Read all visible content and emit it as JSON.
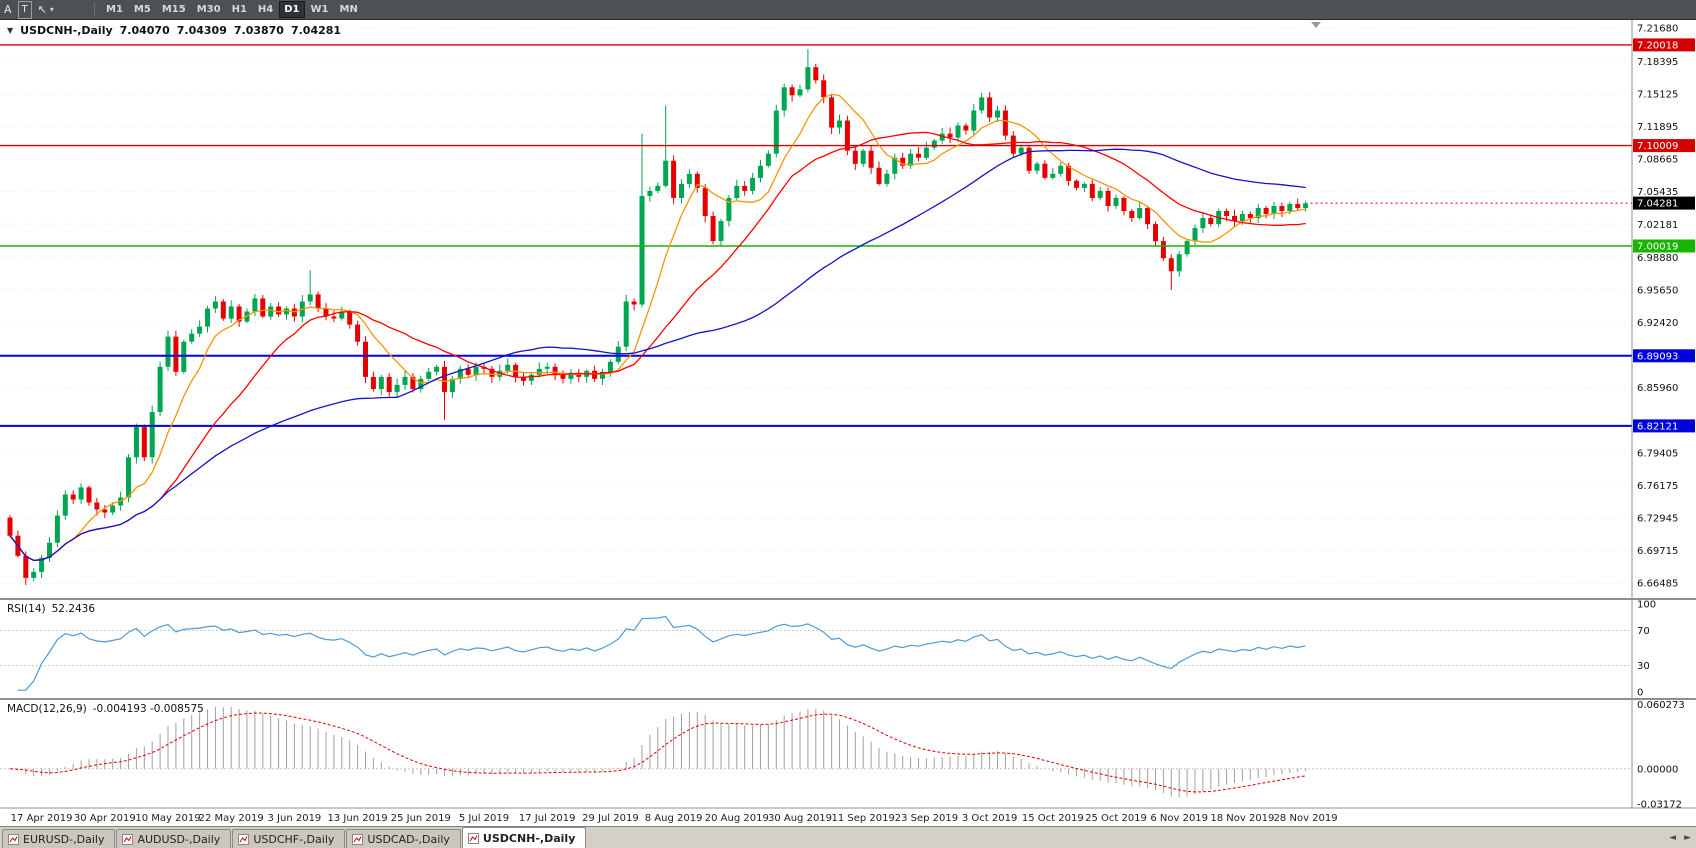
{
  "toolbar": {
    "tools": [
      {
        "name": "font-tool",
        "glyph": "A"
      },
      {
        "name": "text-tool",
        "glyph": "T",
        "boxed": true
      },
      {
        "name": "cursor-tool",
        "glyph": "↖"
      },
      {
        "name": "tools-dropdown-caret",
        "glyph": "▾",
        "caret": true
      }
    ],
    "timeframes": [
      {
        "label": "M1"
      },
      {
        "label": "M5"
      },
      {
        "label": "M15"
      },
      {
        "label": "M30"
      },
      {
        "label": "H1"
      },
      {
        "label": "H4"
      },
      {
        "label": "D1",
        "active": true
      },
      {
        "label": "W1"
      },
      {
        "label": "MN"
      }
    ]
  },
  "chart": {
    "header": {
      "collapse_glyph": "▼",
      "title": "USDCNH-,Daily",
      "open": "7.04070",
      "high": "7.04309",
      "low": "7.03870",
      "close": "7.04281"
    },
    "rsi_label": {
      "name": "RSI(14)",
      "value": "52.2436"
    },
    "macd_label": {
      "name": "MACD(12,26,9)",
      "value": "-0.004193 -0.008575"
    }
  },
  "chart_data": {
    "type": "candlestick",
    "symbol": "USDCNH-",
    "timeframe": "Daily",
    "current_bar": {
      "open": 7.0407,
      "high": 7.04309,
      "low": 7.0387,
      "close": 7.04281
    },
    "x_labels": [
      "17 Apr 2019",
      "30 Apr 2019",
      "10 May 2019",
      "22 May 2019",
      "3 Jun 2019",
      "13 Jun 2019",
      "25 Jun 2019",
      "5 Jul 2019",
      "17 Jul 2019",
      "29 Jul 2019",
      "8 Aug 2019",
      "20 Aug 2019",
      "30 Aug 2019",
      "11 Sep 2019",
      "23 Sep 2019",
      "3 Oct 2019",
      "15 Oct 2019",
      "25 Oct 2019",
      "6 Nov 2019",
      "18 Nov 2019",
      "28 Nov 2019"
    ],
    "label_start_index": 4,
    "label_step": 8,
    "first_open": 6.73,
    "closes": [
      6.712,
      6.692,
      6.67,
      6.676,
      6.69,
      6.705,
      6.732,
      6.753,
      6.748,
      6.76,
      6.745,
      6.738,
      6.735,
      6.742,
      6.75,
      6.79,
      6.82,
      6.79,
      6.835,
      6.88,
      6.91,
      6.875,
      6.905,
      6.913,
      6.92,
      6.938,
      6.945,
      6.928,
      6.94,
      6.925,
      6.935,
      6.948,
      6.93,
      6.94,
      6.932,
      6.938,
      6.93,
      6.945,
      6.952,
      6.938,
      6.93,
      6.928,
      6.935,
      6.922,
      6.905,
      6.87,
      6.858,
      6.87,
      6.855,
      6.862,
      6.87,
      6.858,
      6.868,
      6.875,
      6.88,
      6.855,
      6.868,
      6.878,
      6.872,
      6.88,
      6.878,
      6.87,
      6.876,
      6.882,
      6.87,
      6.866,
      6.872,
      6.878,
      6.88,
      6.872,
      6.868,
      6.874,
      6.87,
      6.876,
      6.868,
      6.875,
      6.885,
      6.9,
      6.945,
      6.942,
      7.05,
      7.055,
      7.06,
      7.085,
      7.048,
      7.062,
      7.072,
      7.058,
      7.03,
      7.005,
      7.025,
      7.048,
      7.06,
      7.055,
      7.068,
      7.08,
      7.092,
      7.135,
      7.158,
      7.15,
      7.156,
      7.178,
      7.165,
      7.148,
      7.118,
      7.125,
      7.095,
      7.082,
      7.095,
      7.078,
      7.062,
      7.072,
      7.088,
      7.08,
      7.092,
      7.088,
      7.098,
      7.105,
      7.112,
      7.108,
      7.12,
      7.115,
      7.135,
      7.148,
      7.128,
      7.135,
      7.11,
      7.092,
      7.098,
      7.075,
      7.082,
      7.068,
      7.072,
      7.08,
      7.065,
      7.058,
      7.062,
      7.048,
      7.055,
      7.04,
      7.048,
      7.035,
      7.028,
      7.038,
      7.022,
      7.005,
      6.988,
      6.975,
      6.992,
      7.005,
      7.018,
      7.028,
      7.022,
      7.035,
      7.03,
      7.025,
      7.032,
      7.028,
      7.038,
      7.032,
      7.04,
      7.035,
      7.042,
      7.038,
      7.0428
    ],
    "wick_overrides": {
      "2": {
        "low": 6.663
      },
      "38": {
        "high": 6.976
      },
      "55": {
        "low": 6.827
      },
      "80": {
        "high": 7.112
      },
      "83": {
        "high": 7.14
      },
      "101": {
        "high": 7.196
      },
      "147": {
        "low": 6.9565
      }
    },
    "price_axis": {
      "min": 6.65,
      "max": 7.225,
      "ticks": [
        "7.21680",
        "7.18395",
        "7.15125",
        "7.11895",
        "7.08665",
        "7.05435",
        "7.02181",
        "6.98880",
        "6.95650",
        "6.92420",
        "6.85960",
        "6.79405",
        "6.76175",
        "6.72945",
        "6.69715",
        "6.66485"
      ]
    },
    "hlines": [
      {
        "value": 7.20018,
        "color": "#D40000",
        "width": 1.4
      },
      {
        "value": 7.10009,
        "color": "#D40000",
        "width": 1.4
      },
      {
        "value": 7.00019,
        "color": "#17B400",
        "width": 1.4
      },
      {
        "value": 6.89093,
        "color": "#0000DC",
        "width": 2
      },
      {
        "value": 6.82121,
        "color": "#0000DC",
        "width": 2
      }
    ],
    "current_price": {
      "value": 7.04281,
      "label": "7.04281"
    },
    "moving_averages": [
      {
        "period": 8,
        "color": "#F79500"
      },
      {
        "period": 20,
        "color": "#FF0000"
      },
      {
        "period": 50,
        "color": "#1414C8"
      }
    ],
    "rsi": {
      "period": 14,
      "current": 52.2436,
      "levels": [
        70,
        30
      ],
      "axis_labels": [
        {
          "label": "100",
          "value": 100
        },
        {
          "label": "70",
          "value": 70
        },
        {
          "label": "30",
          "value": 30
        },
        {
          "label": "0",
          "value": 0
        }
      ]
    },
    "macd": {
      "fast": 12,
      "slow": 26,
      "signal_period": 9,
      "macd_value": -0.004193,
      "signal_value": -0.008575,
      "axis": {
        "min": -0.03172,
        "max": 0.060273,
        "labels": [
          {
            "label": "0.060273",
            "value": 0.060273
          },
          {
            "label": "0.00000",
            "value": 0.0
          },
          {
            "label": "-0.03172",
            "value": -0.03172
          }
        ]
      }
    }
  },
  "tabs": {
    "items": [
      {
        "label": "EURUSD-,Daily"
      },
      {
        "label": "AUDUSD-,Daily"
      },
      {
        "label": "USDCHF-,Daily"
      },
      {
        "label": "USDCAD-,Daily"
      },
      {
        "label": "USDCNH-,Daily",
        "active": true
      }
    ],
    "scroll_left_glyph": "◄",
    "scroll_right_glyph": "►"
  },
  "colors": {
    "up": "#00A651",
    "down": "#E60000",
    "rsi": "#4F9BD5",
    "macd_hist": "#A0A0A0",
    "macd_signal": "#E00000",
    "grid": "#E4E4E4",
    "axis_text": "#111111",
    "badge_current_bg": "#000000"
  }
}
